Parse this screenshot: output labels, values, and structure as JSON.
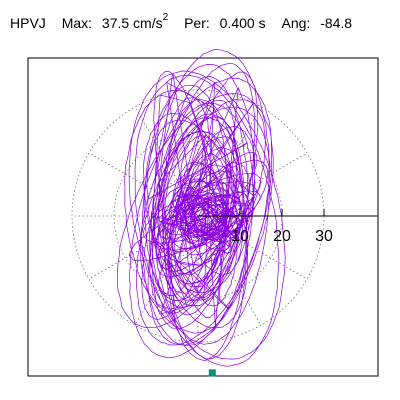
{
  "header": {
    "station": "HPVJ",
    "max_label": "Max:",
    "max_value": "37.5 cm/s",
    "max_exponent": "2",
    "period_label": "Per:",
    "period_value": "0.400 s",
    "angle_label": "Ang:",
    "angle_value": "-84.8"
  },
  "colors": {
    "trace": "#8b00e0",
    "grid": "#707070",
    "axis": "#000000",
    "marker": "#009080"
  },
  "chart_data": {
    "type": "polar-hodogram",
    "radial_ticks": [
      10,
      20,
      30
    ],
    "radial_tick_labels": [
      "10",
      "20",
      "30"
    ],
    "max_radius": 30,
    "angular_gridlines_deg": [
      30,
      60,
      90,
      120,
      150,
      180,
      210,
      240,
      270,
      300,
      330
    ],
    "grid": true,
    "max_amplitude": 37.5,
    "max_angle_deg": -84.8,
    "marker_point": {
      "r": 37.5,
      "angle_deg": -84.8
    }
  }
}
